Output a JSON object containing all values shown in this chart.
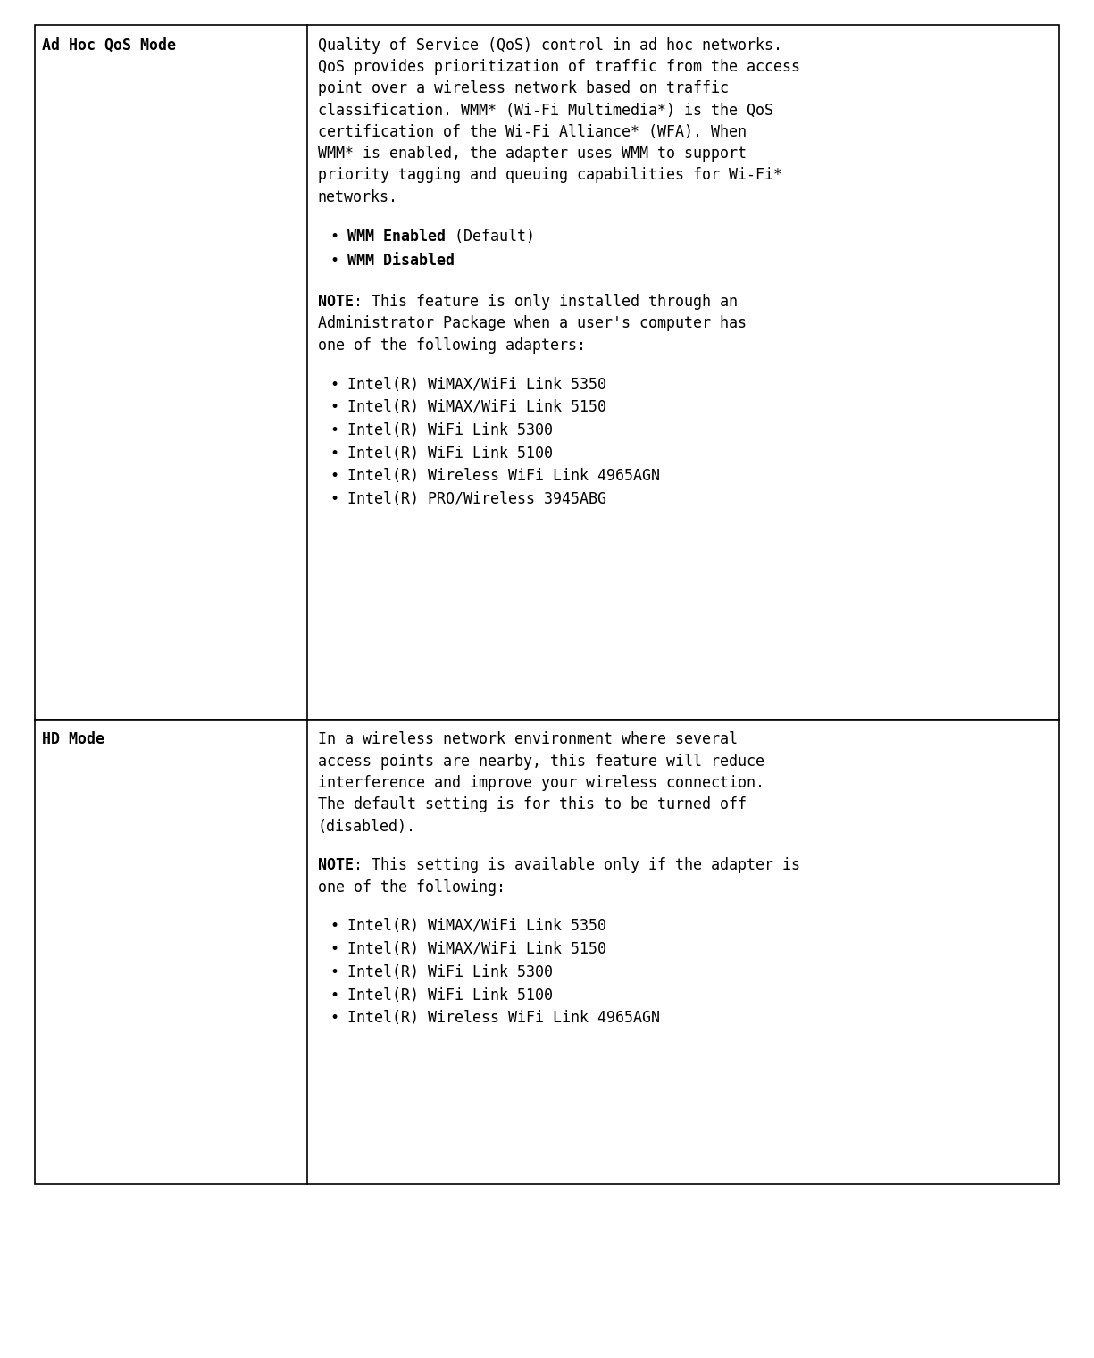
{
  "fig_width": 12.25,
  "fig_height": 15.21,
  "dpi": 100,
  "bg_color": "#ffffff",
  "border_color": "#000000",
  "font_size": 12,
  "font_family": "DejaVu Sans Mono",
  "rows": [
    {
      "header": "Ad Hoc QoS Mode",
      "para1_lines": [
        "Quality of Service (QoS) control in ad hoc networks.",
        "QoS provides prioritization of traffic from the access",
        "point over a wireless network based on traffic",
        "classification. WMM* (Wi-Fi Multimedia*) is the QoS",
        "certification of the Wi-Fi Alliance* (WFA). When",
        "WMM* is enabled, the adapter uses WMM to support",
        "priority tagging and queuing capabilities for Wi-Fi*",
        "networks."
      ],
      "bullets_bold": [
        {
          "bold": "WMM Enabled",
          "normal": " (Default)"
        },
        {
          "bold": "WMM Disabled",
          "normal": ""
        }
      ],
      "note_bold": "NOTE",
      "note_lines": [
        ": This feature is only installed through an",
        "Administrator Package when a user's computer has",
        "one of the following adapters:"
      ],
      "adapters": [
        "Intel(R) WiMAX/WiFi Link 5350",
        "Intel(R) WiMAX/WiFi Link 5150",
        "Intel(R) WiFi Link 5300",
        "Intel(R) WiFi Link 5100",
        "Intel(R) Wireless WiFi Link 4965AGN",
        "Intel(R) PRO/Wireless 3945ABG"
      ]
    },
    {
      "header": "HD Mode",
      "para1_lines": [
        "In a wireless network environment where several",
        "access points are nearby, this feature will reduce",
        "interference and improve your wireless connection.",
        "The default setting is for this to be turned off",
        "(disabled)."
      ],
      "bullets_bold": [],
      "note_bold": "NOTE",
      "note_lines": [
        ": This setting is available only if the adapter is",
        "one of the following:"
      ],
      "adapters": [
        "Intel(R) WiMAX/WiFi Link 5350",
        "Intel(R) WiMAX/WiFi Link 5150",
        "Intel(R) WiFi Link 5300",
        "Intel(R) WiFi Link 5100",
        "Intel(R) Wireless WiFi Link 4965AGN"
      ]
    }
  ]
}
